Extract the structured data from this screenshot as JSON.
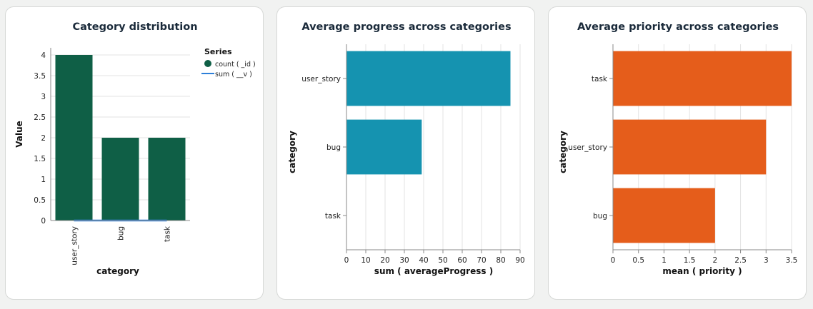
{
  "chart_data": [
    {
      "type": "bar",
      "title": "Category distribution",
      "xlabel": "category",
      "ylabel": "Value",
      "categories": [
        "user_story",
        "bug",
        "task"
      ],
      "ylim": [
        0,
        4
      ],
      "yticks": [
        0,
        0.5,
        1,
        1.5,
        2,
        2.5,
        3,
        3.5,
        4
      ],
      "legend": {
        "title": "Series",
        "position": "right"
      },
      "series": [
        {
          "name": "count ( _id )",
          "kind": "bar",
          "color": "#0f5f46",
          "values": [
            4,
            2,
            2
          ]
        },
        {
          "name": "sum ( __v )",
          "kind": "line",
          "color": "#2d7fd9",
          "values": [
            0,
            0,
            0
          ]
        }
      ]
    },
    {
      "type": "bar",
      "orientation": "horizontal",
      "title": "Average progress across categories",
      "xlabel": "sum ( averageProgress )",
      "ylabel": "category",
      "categories": [
        "user_story",
        "bug",
        "task"
      ],
      "values": [
        85,
        39,
        0
      ],
      "color": "#1593b0",
      "xlim": [
        0,
        90
      ],
      "xticks": [
        0,
        10,
        20,
        30,
        40,
        50,
        60,
        70,
        80,
        90
      ]
    },
    {
      "type": "bar",
      "orientation": "horizontal",
      "title": "Average priority across categories",
      "xlabel": "mean ( priority )",
      "ylabel": "category",
      "categories": [
        "task",
        "user_story",
        "bug"
      ],
      "values": [
        3.5,
        3,
        2
      ],
      "color": "#e55d1b",
      "xlim": [
        0,
        3.5
      ],
      "xticks": [
        0,
        0.5,
        1,
        1.5,
        2,
        2.5,
        3,
        3.5
      ]
    }
  ]
}
